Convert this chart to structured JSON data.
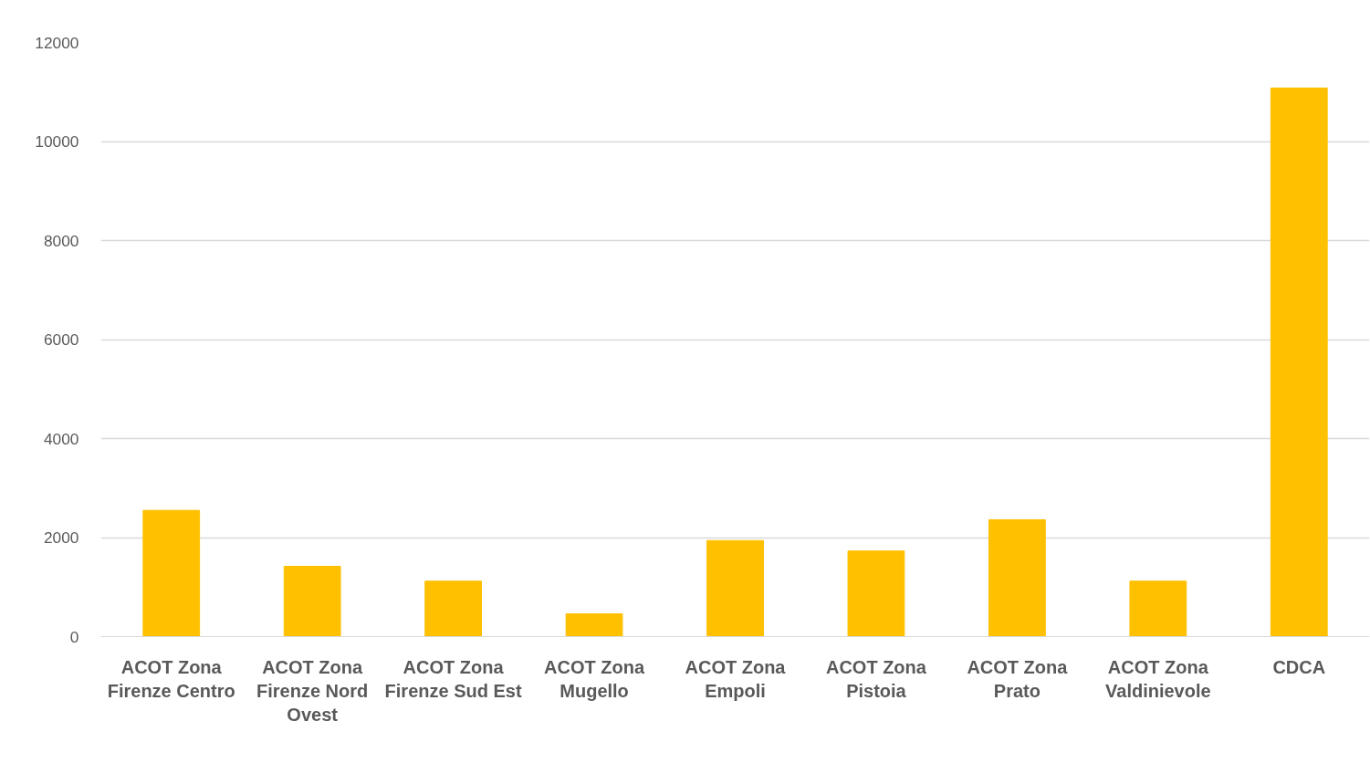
{
  "chart_data": {
    "type": "bar",
    "categories": [
      "ACOT Zona\nFirenze Centro",
      "ACOT Zona\nFirenze Nord\nOvest",
      "ACOT Zona\nFirenze Sud Est",
      "ACOT Zona\nMugello",
      "ACOT Zona\nEmpoli",
      "ACOT Zona\nPistoia",
      "ACOT Zona\nPrato",
      "ACOT Zona\nValdinievole",
      "CDCA"
    ],
    "values": [
      2550,
      1420,
      1120,
      460,
      1940,
      1730,
      2360,
      1120,
      11080
    ],
    "color": "#ffc000",
    "ylim": [
      0,
      12000
    ],
    "yticks": [
      0,
      2000,
      4000,
      6000,
      8000,
      10000,
      12000
    ],
    "grid": "y"
  }
}
